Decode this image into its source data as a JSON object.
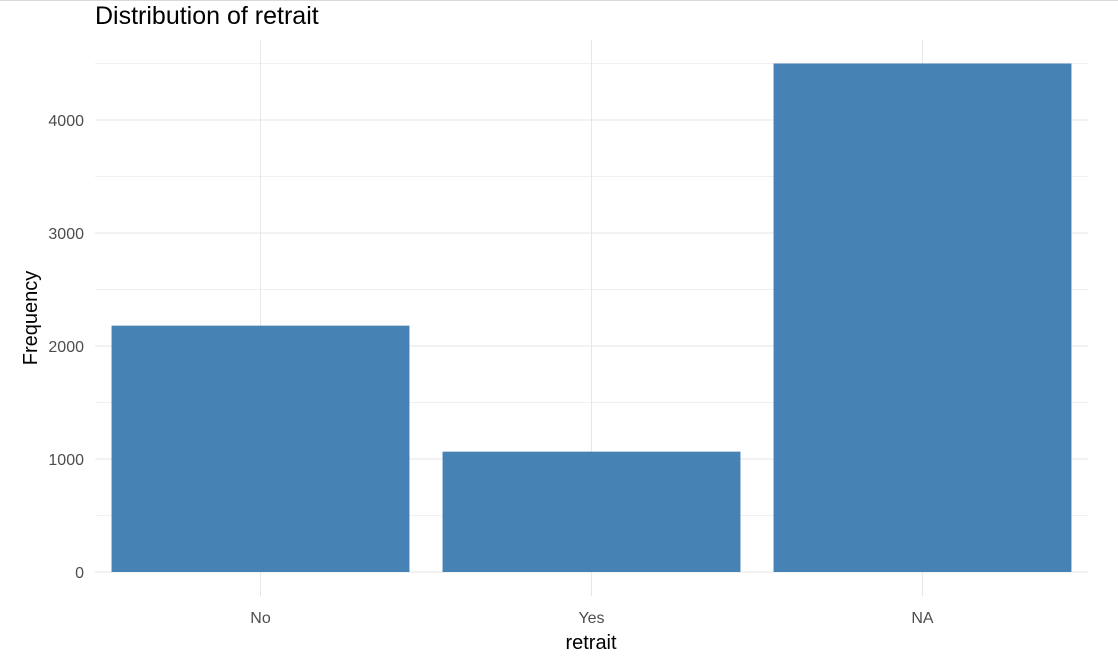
{
  "chart_data": {
    "type": "bar",
    "title": "Distribution of retrait",
    "xlabel": "retrait",
    "ylabel": "Frequency",
    "categories": [
      "No",
      "Yes",
      "NA"
    ],
    "values": [
      2180,
      1065,
      4500
    ],
    "ylim": [
      0,
      4700
    ],
    "yticks": [
      0,
      1000,
      2000,
      3000,
      4000
    ],
    "ytick_labels": [
      "0",
      "1000",
      "2000",
      "3000",
      "4000"
    ],
    "grid": true,
    "legend": "none",
    "bar_color": "#4682B4"
  }
}
